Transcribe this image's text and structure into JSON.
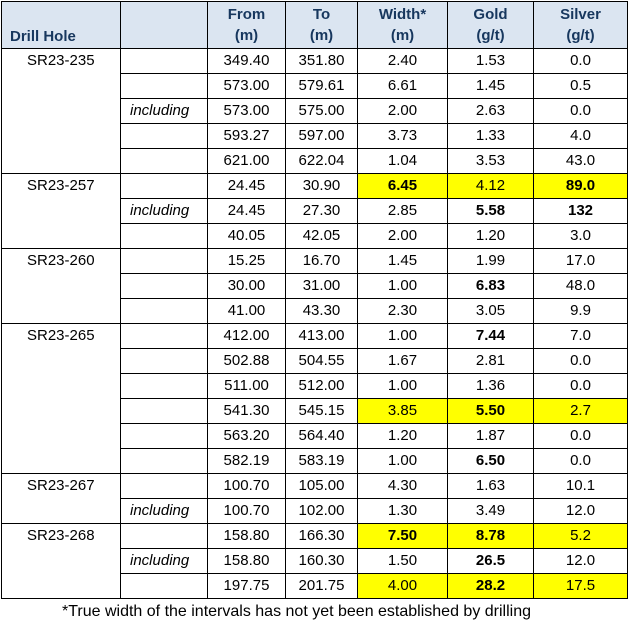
{
  "headers": {
    "drill_hole": "Drill Hole",
    "include": "",
    "from_1": "From",
    "from_2": "(m)",
    "to_1": "To",
    "to_2": "(m)",
    "width_1": "Width*",
    "width_2": "(m)",
    "gold_1": "Gold",
    "gold_2": "(g/t)",
    "silver_1": "Silver",
    "silver_2": "(g/t)"
  },
  "holes": [
    {
      "id": "SR23-235",
      "rows": [
        {
          "label": "",
          "from": "349.40",
          "to": "351.80",
          "width": "2.40",
          "gold": "1.53",
          "silver": "0.0"
        },
        {
          "label": "",
          "from": "573.00",
          "to": "579.61",
          "width": "6.61",
          "gold": "1.45",
          "silver": "0.5"
        },
        {
          "label": "including",
          "from": "573.00",
          "to": "575.00",
          "width": "2.00",
          "gold": "2.63",
          "silver": "0.0"
        },
        {
          "label": "",
          "from": "593.27",
          "to": "597.00",
          "width": "3.73",
          "gold": "1.33",
          "silver": "4.0"
        },
        {
          "label": "",
          "from": "621.00",
          "to": "622.04",
          "width": "1.04",
          "gold": "3.53",
          "silver": "43.0"
        }
      ]
    },
    {
      "id": "SR23-257",
      "rows": [
        {
          "label": "",
          "from": "24.45",
          "to": "30.90",
          "width": "6.45",
          "gold": "4.12",
          "silver": "89.0",
          "hl": [
            "width",
            "gold",
            "silver"
          ],
          "bold": [
            "width",
            "silver"
          ]
        },
        {
          "label": "including",
          "from": "24.45",
          "to": "27.30",
          "width": "2.85",
          "gold": "5.58",
          "silver": "132",
          "bold": [
            "gold",
            "silver"
          ]
        },
        {
          "label": "",
          "from": "40.05",
          "to": "42.05",
          "width": "2.00",
          "gold": "1.20",
          "silver": "3.0"
        }
      ]
    },
    {
      "id": "SR23-260",
      "rows": [
        {
          "label": "",
          "from": "15.25",
          "to": "16.70",
          "width": "1.45",
          "gold": "1.99",
          "silver": "17.0"
        },
        {
          "label": "",
          "from": "30.00",
          "to": "31.00",
          "width": "1.00",
          "gold": "6.83",
          "silver": "48.0",
          "bold": [
            "gold"
          ]
        },
        {
          "label": "",
          "from": "41.00",
          "to": "43.30",
          "width": "2.30",
          "gold": "3.05",
          "silver": "9.9"
        }
      ]
    },
    {
      "id": "SR23-265",
      "rows": [
        {
          "label": "",
          "from": "412.00",
          "to": "413.00",
          "width": "1.00",
          "gold": "7.44",
          "silver": "7.0",
          "bold": [
            "gold"
          ]
        },
        {
          "label": "",
          "from": "502.88",
          "to": "504.55",
          "width": "1.67",
          "gold": "2.81",
          "silver": "0.0"
        },
        {
          "label": "",
          "from": "511.00",
          "to": "512.00",
          "width": "1.00",
          "gold": "1.36",
          "silver": "0.0"
        },
        {
          "label": "",
          "from": "541.30",
          "to": "545.15",
          "width": "3.85",
          "gold": "5.50",
          "silver": "2.7",
          "hl": [
            "width",
            "gold",
            "silver"
          ],
          "bold": [
            "gold"
          ]
        },
        {
          "label": "",
          "from": "563.20",
          "to": "564.40",
          "width": "1.20",
          "gold": "1.87",
          "silver": "0.0"
        },
        {
          "label": "",
          "from": "582.19",
          "to": "583.19",
          "width": "1.00",
          "gold": "6.50",
          "silver": "0.0",
          "bold": [
            "gold"
          ]
        }
      ]
    },
    {
      "id": "SR23-267",
      "rows": [
        {
          "label": "",
          "from": "100.70",
          "to": "105.00",
          "width": "4.30",
          "gold": "1.63",
          "silver": "10.1"
        },
        {
          "label": "including",
          "from": "100.70",
          "to": "102.00",
          "width": "1.30",
          "gold": "3.49",
          "silver": "12.0"
        }
      ]
    },
    {
      "id": "SR23-268",
      "rows": [
        {
          "label": "",
          "from": "158.80",
          "to": "166.30",
          "width": "7.50",
          "gold": "8.78",
          "silver": "5.2",
          "hl": [
            "width",
            "gold",
            "silver"
          ],
          "bold": [
            "width",
            "gold"
          ]
        },
        {
          "label": "including",
          "from": "158.80",
          "to": "160.30",
          "width": "1.50",
          "gold": "26.5",
          "silver": "12.0",
          "bold": [
            "gold"
          ]
        },
        {
          "label": "",
          "from": "197.75",
          "to": "201.75",
          "width": "4.00",
          "gold": "28.2",
          "silver": "17.5",
          "hl": [
            "width",
            "gold",
            "silver"
          ],
          "bold": [
            "gold"
          ]
        }
      ]
    }
  ],
  "footnote": "*True width of the intervals has not yet been established by drilling",
  "colors": {
    "header_bg": "#dbe5f1",
    "header_text": "#17375e",
    "highlight": "#ffff00"
  }
}
